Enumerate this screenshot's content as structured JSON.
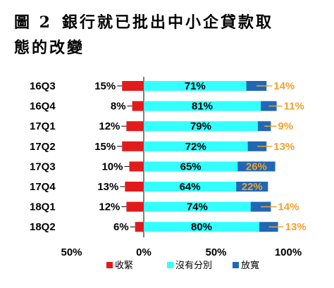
{
  "title": {
    "figure_label": "圖 2",
    "line1": "銀行就已批出中小企貸款取",
    "line2": "態的改變"
  },
  "colors": {
    "tighten": "#e31a1c",
    "unchanged": "#33ffff",
    "loosen": "#2167b4",
    "loosen_label": "#f5a02a",
    "leader": "#000000"
  },
  "chart_data": {
    "type": "bar",
    "orientation": "horizontal",
    "stacked": "diverging",
    "categories": [
      "16Q3",
      "16Q4",
      "17Q1",
      "17Q2",
      "17Q3",
      "17Q4",
      "18Q1",
      "18Q2"
    ],
    "series": [
      {
        "name": "收緊",
        "values": [
          15,
          8,
          12,
          15,
          10,
          13,
          12,
          6
        ],
        "labels": [
          "15%",
          "8%",
          "12%",
          "15%",
          "10%",
          "13%",
          "12%",
          "6%"
        ]
      },
      {
        "name": "沒有分別",
        "values": [
          71,
          81,
          79,
          72,
          65,
          64,
          74,
          80
        ],
        "labels": [
          "71%",
          "81%",
          "79%",
          "72%",
          "65%",
          "64%",
          "74%",
          "80%"
        ]
      },
      {
        "name": "放寬",
        "values": [
          14,
          11,
          9,
          13,
          26,
          22,
          14,
          13
        ],
        "labels": [
          "14%",
          "11%",
          "9%",
          "13%",
          "26%",
          "22%",
          "14%",
          "13%"
        ]
      }
    ],
    "xlim": [
      -50,
      100
    ],
    "xticks": [
      -50,
      0,
      50,
      100
    ],
    "xtick_labels": [
      "50%",
      "0%",
      "50%",
      "100%"
    ],
    "legend_position": "bottom",
    "gridlines": false
  }
}
